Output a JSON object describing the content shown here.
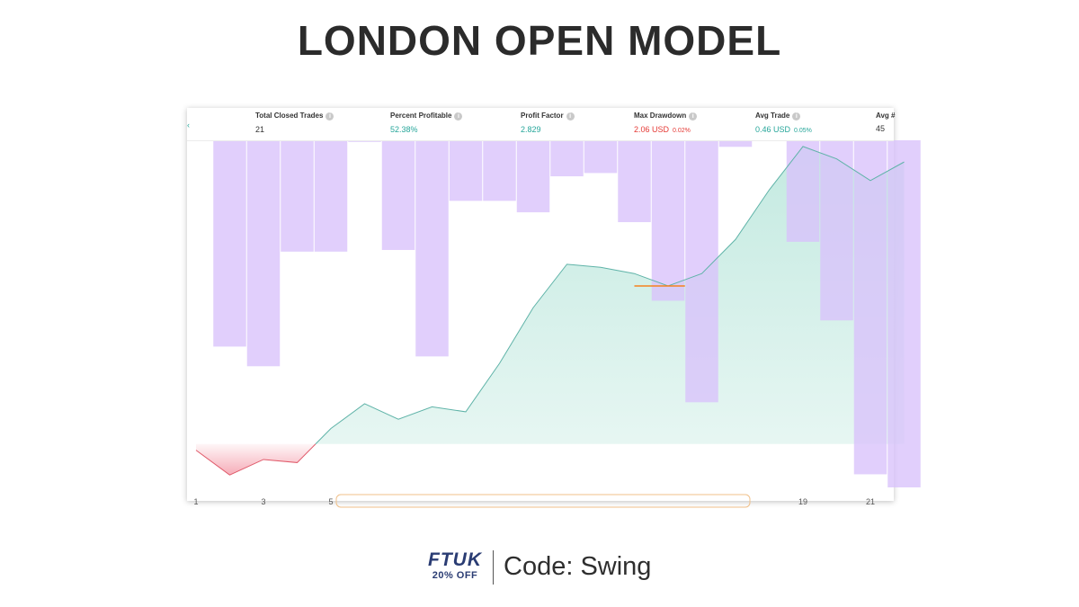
{
  "title": "LONDON OPEN MODEL",
  "stats": {
    "total_closed_trades": {
      "label": "Total Closed Trades",
      "value": "21"
    },
    "percent_profitable": {
      "label": "Percent Profitable",
      "value": "52.38%"
    },
    "profit_factor": {
      "label": "Profit Factor",
      "value": "2.829"
    },
    "max_drawdown": {
      "label": "Max Drawdown",
      "value": "2.06 USD",
      "pct": "0.02%"
    },
    "avg_trade": {
      "label": "Avg Trade",
      "value": "0.46 USD",
      "pct": "0.05%"
    },
    "avg_bars": {
      "label": "Avg #",
      "value": "45"
    }
  },
  "colors": {
    "bar": "#d9c2fb",
    "equity_line": "#5fb3a8",
    "equity_fill": "#b9e6db",
    "loss_line": "#e05a6a",
    "loss_fill": "#f5a3b0",
    "marker": "#f5821f"
  },
  "chart_data": {
    "type": "area",
    "x_tick_labels": [
      "1",
      "3",
      "5",
      "19",
      "21"
    ],
    "equity": {
      "name": "",
      "x": [
        1,
        2,
        3,
        4,
        5,
        6,
        7,
        8,
        9,
        10,
        11,
        12,
        13,
        14,
        15,
        16,
        17,
        18,
        19,
        20,
        21,
        22
      ],
      "y": [
        -0.1,
        -0.5,
        -0.25,
        -0.3,
        0.25,
        0.65,
        0.4,
        0.6,
        0.52,
        1.3,
        2.2,
        2.9,
        2.85,
        2.75,
        2.55,
        2.75,
        3.3,
        4.1,
        4.8,
        4.6,
        4.25,
        4.55
      ]
    },
    "drawdown_bars": {
      "x": [
        2,
        3,
        4,
        5,
        6,
        7,
        8,
        9,
        10,
        11,
        12,
        13,
        14,
        15,
        16,
        17,
        18,
        19,
        20,
        21,
        22
      ],
      "y": [
        6.3,
        6.9,
        3.4,
        3.4,
        0.05,
        3.35,
        6.6,
        1.85,
        1.85,
        2.2,
        1.1,
        1.0,
        2.5,
        4.9,
        8.0,
        0.2,
        0,
        3.1,
        5.5,
        10.2,
        10.6
      ]
    },
    "max_drawdown_marker": {
      "x": [
        14,
        15.5
      ],
      "y": 2.55
    },
    "equity_ylim": [
      -0.7,
      4.9
    ],
    "drawdown_ylim": [
      0,
      10.6
    ]
  },
  "footer": {
    "brand": "FTUK",
    "offer": "20% OFF",
    "code_text": "Code: Swing"
  }
}
